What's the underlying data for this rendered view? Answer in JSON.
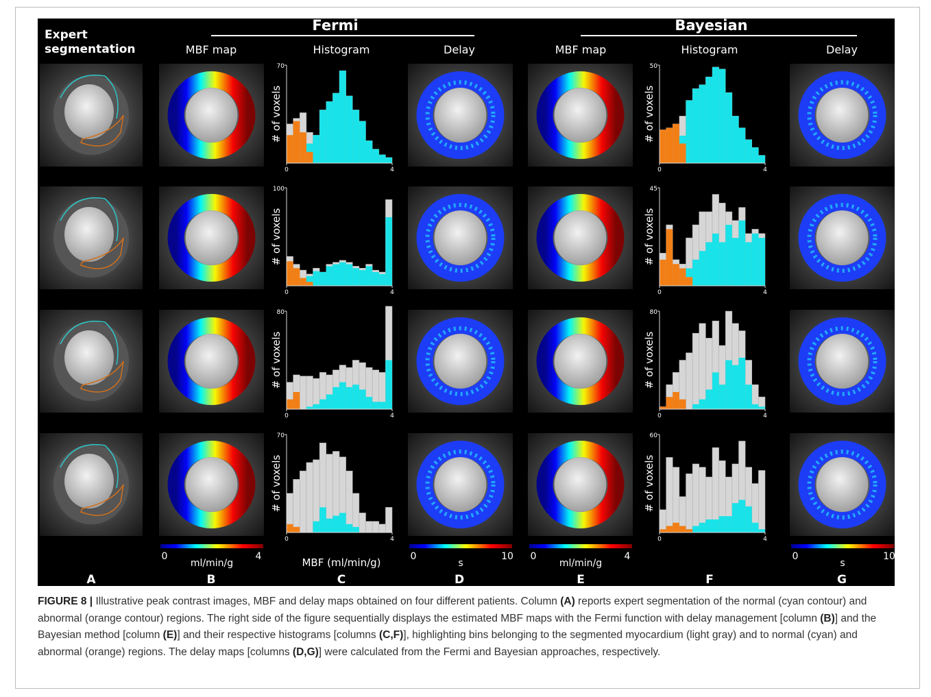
{
  "figure": {
    "groups": [
      {
        "title": "Fermi",
        "from": "B",
        "to": "D"
      },
      {
        "title": "Bayesian",
        "from": "E",
        "to": "G"
      }
    ],
    "colors": {
      "myocardium": "#d6d6d6",
      "normal": "#19e3e8",
      "abnormal": "#f27f16"
    },
    "columns": [
      {
        "letter": "A",
        "header_lines": [
          "Expert",
          "segmentation"
        ]
      },
      {
        "letter": "B",
        "header": "MBF map",
        "colorbar": {
          "min": 0,
          "max": 4,
          "unit": "ml/min/g"
        }
      },
      {
        "letter": "C",
        "header": "Histogram",
        "xlabel": "MBF (ml/min/g)",
        "panels": [
          {
            "ylabel": "# of voxels",
            "ylim": [
              0,
              70
            ],
            "yticks": [
              70
            ],
            "xlim": [
              0,
              4
            ],
            "xticks": [
              0,
              4
            ],
            "bins": [
              0,
              0.25,
              0.5,
              0.75,
              1,
              1.25,
              1.5,
              1.75,
              2,
              2.25,
              2.5,
              2.75,
              3,
              3.25,
              3.5,
              3.75,
              4
            ],
            "myocardium": [
              28,
              32,
              36,
              22,
              20,
              38,
              44,
              50,
              66,
              48,
              38,
              30,
              16,
              10,
              6,
              4
            ],
            "normal": [
              0,
              0,
              8,
              14,
              20,
              38,
              44,
              50,
              66,
              48,
              38,
              30,
              16,
              10,
              6,
              4
            ],
            "abnormal": [
              20,
              30,
              22,
              8,
              0,
              0,
              0,
              0,
              0,
              0,
              0,
              0,
              0,
              0,
              0,
              0
            ]
          },
          {
            "ylabel": "# of voxels",
            "ylim": [
              0,
              100
            ],
            "yticks": [
              100
            ],
            "xlim": [
              0,
              4
            ],
            "xticks": [
              0,
              4
            ],
            "bins": [
              0,
              0.25,
              0.5,
              0.75,
              1,
              1.25,
              1.5,
              1.75,
              2,
              2.25,
              2.5,
              2.75,
              3,
              3.25,
              3.5,
              3.75,
              4
            ],
            "myocardium": [
              30,
              22,
              16,
              12,
              18,
              14,
              22,
              24,
              26,
              24,
              20,
              18,
              22,
              16,
              14,
              88
            ],
            "normal": [
              0,
              5,
              8,
              10,
              15,
              14,
              20,
              22,
              24,
              22,
              18,
              16,
              20,
              14,
              12,
              70
            ],
            "abnormal": [
              25,
              18,
              8,
              4,
              0,
              0,
              0,
              0,
              0,
              0,
              0,
              0,
              0,
              0,
              0,
              0
            ]
          },
          {
            "ylabel": "# of voxels",
            "ylim": [
              0,
              80
            ],
            "yticks": [
              80
            ],
            "xlim": [
              0,
              4
            ],
            "xticks": [
              0,
              4
            ],
            "bins": [
              0,
              0.25,
              0.5,
              0.75,
              1,
              1.25,
              1.5,
              1.75,
              2,
              2.25,
              2.5,
              2.75,
              3,
              3.25,
              3.5,
              3.75,
              4
            ],
            "myocardium": [
              22,
              28,
              27,
              27,
              25,
              30,
              28,
              32,
              36,
              34,
              40,
              38,
              34,
              32,
              30,
              84
            ],
            "normal": [
              0,
              0,
              0,
              2,
              4,
              8,
              12,
              18,
              22,
              18,
              20,
              16,
              10,
              6,
              6,
              40
            ],
            "abnormal": [
              8,
              14,
              0,
              0,
              0,
              0,
              0,
              0,
              0,
              0,
              0,
              0,
              0,
              0,
              0,
              0
            ]
          },
          {
            "ylabel": "# of voxels",
            "ylim": [
              0,
              70
            ],
            "yticks": [
              70
            ],
            "xlim": [
              0,
              4
            ],
            "xticks": [
              0,
              4
            ],
            "bins": [
              0,
              0.25,
              0.5,
              0.75,
              1,
              1.25,
              1.5,
              1.75,
              2,
              2.25,
              2.5,
              2.75,
              3,
              3.25,
              3.5,
              3.75,
              4
            ],
            "myocardium": [
              28,
              38,
              44,
              50,
              52,
              64,
              56,
              58,
              54,
              44,
              28,
              14,
              8,
              8,
              6,
              18
            ],
            "normal": [
              0,
              0,
              0,
              0,
              8,
              18,
              10,
              12,
              14,
              6,
              4,
              0,
              0,
              0,
              0,
              0
            ],
            "abnormal": [
              6,
              4,
              0,
              0,
              0,
              0,
              0,
              0,
              0,
              0,
              0,
              0,
              0,
              0,
              0,
              0
            ]
          }
        ]
      },
      {
        "letter": "D",
        "header": "Delay",
        "colorbar": {
          "min": 0,
          "max": 10,
          "unit": "s"
        }
      },
      {
        "letter": "E",
        "header": "MBF map",
        "colorbar": {
          "min": 0,
          "max": 4,
          "unit": "ml/min/g"
        }
      },
      {
        "letter": "F",
        "header": "Histogram",
        "panels": [
          {
            "ylabel": "# of voxels",
            "ylim": [
              0,
              50
            ],
            "yticks": [
              50
            ],
            "xlim": [
              0,
              4
            ],
            "xticks": [
              0,
              4
            ],
            "bins": [
              0,
              0.25,
              0.5,
              0.75,
              1,
              1.25,
              1.5,
              1.75,
              2,
              2.25,
              2.5,
              2.75,
              3,
              3.25,
              3.5,
              3.75,
              4
            ],
            "myocardium": [
              17,
              18,
              20,
              24,
              32,
              38,
              40,
              44,
              49,
              48,
              36,
              24,
              18,
              12,
              8,
              4
            ],
            "normal": [
              0,
              0,
              0,
              14,
              32,
              38,
              40,
              44,
              49,
              48,
              36,
              24,
              18,
              12,
              8,
              4
            ],
            "abnormal": [
              17,
              18,
              20,
              10,
              0,
              0,
              0,
              0,
              0,
              0,
              0,
              0,
              0,
              0,
              0,
              0
            ]
          },
          {
            "ylabel": "# of voxels",
            "ylim": [
              0,
              45
            ],
            "yticks": [
              45
            ],
            "xlim": [
              0,
              4
            ],
            "xticks": [
              0,
              4
            ],
            "bins": [
              0,
              0.25,
              0.5,
              0.75,
              1,
              1.25,
              1.5,
              1.75,
              2,
              2.25,
              2.5,
              2.75,
              3,
              3.25,
              3.5,
              3.75,
              4
            ],
            "myocardium": [
              15,
              28,
              12,
              10,
              22,
              28,
              34,
              34,
              42,
              38,
              34,
              30,
              36,
              24,
              26,
              24
            ],
            "normal": [
              0,
              0,
              0,
              2,
              8,
              12,
              16,
              20,
              24,
              20,
              28,
              22,
              30,
              20,
              24,
              22
            ],
            "abnormal": [
              12,
              26,
              10,
              8,
              4,
              0,
              0,
              0,
              0,
              0,
              0,
              0,
              0,
              0,
              0,
              0
            ]
          },
          {
            "ylabel": "# of voxels",
            "ylim": [
              0,
              80
            ],
            "yticks": [
              80
            ],
            "xlim": [
              0,
              4
            ],
            "xticks": [
              0,
              4
            ],
            "bins": [
              0,
              0.25,
              0.5,
              0.75,
              1,
              1.25,
              1.5,
              1.75,
              2,
              2.25,
              2.5,
              2.75,
              3,
              3.25,
              3.5,
              3.75,
              4
            ],
            "myocardium": [
              2,
              20,
              30,
              40,
              46,
              62,
              70,
              58,
              72,
              52,
              80,
              70,
              64,
              40,
              20,
              10
            ],
            "normal": [
              0,
              0,
              0,
              0,
              0,
              4,
              8,
              16,
              30,
              20,
              40,
              36,
              42,
              20,
              4,
              2
            ],
            "abnormal": [
              2,
              10,
              14,
              8,
              0,
              0,
              0,
              0,
              0,
              0,
              0,
              0,
              0,
              0,
              0,
              0
            ]
          },
          {
            "ylabel": "# of voxels",
            "ylim": [
              0,
              60
            ],
            "yticks": [
              60
            ],
            "xlim": [
              0,
              4
            ],
            "xticks": [
              0,
              4
            ],
            "bins": [
              0,
              0.25,
              0.5,
              0.75,
              1,
              1.25,
              1.5,
              1.75,
              2,
              2.25,
              2.5,
              2.75,
              3,
              3.25,
              3.5,
              3.75,
              4
            ],
            "myocardium": [
              14,
              46,
              40,
              22,
              36,
              42,
              40,
              34,
              52,
              44,
              34,
              42,
              56,
              40,
              30,
              38
            ],
            "normal": [
              0,
              0,
              0,
              0,
              2,
              4,
              6,
              8,
              8,
              10,
              10,
              18,
              20,
              16,
              6,
              2
            ],
            "abnormal": [
              2,
              4,
              6,
              4,
              2,
              0,
              0,
              0,
              0,
              0,
              0,
              0,
              0,
              0,
              0,
              0
            ]
          }
        ]
      },
      {
        "letter": "G",
        "header": "Delay",
        "colorbar": {
          "min": 0,
          "max": 10,
          "unit": "s"
        }
      }
    ],
    "caption": [
      {
        "text": "FIGURE 8 |",
        "bold": true
      },
      {
        "text": " Illustrative peak contrast images, MBF and delay maps obtained on four different patients. Column ",
        "bold": false
      },
      {
        "text": "(A)",
        "bold": true
      },
      {
        "text": " reports expert segmentation of the normal (cyan contour) and abnormal (orange contour) regions. The right side of the figure sequentially displays the estimated MBF maps with the Fermi function with delay management [column ",
        "bold": false
      },
      {
        "text": "(B)",
        "bold": true
      },
      {
        "text": "] and the Bayesian method [column ",
        "bold": false
      },
      {
        "text": "(E)",
        "bold": true
      },
      {
        "text": "] and their respective histograms [columns ",
        "bold": false
      },
      {
        "text": "(C,F)",
        "bold": true
      },
      {
        "text": "], highlighting bins belonging to the segmented myocardium (light gray) and to normal (cyan) and abnormal (orange) regions. The delay maps [columns ",
        "bold": false
      },
      {
        "text": "(D,G)",
        "bold": true
      },
      {
        "text": "] were calculated from the Fermi and Bayesian approaches, respectively.",
        "bold": false
      }
    ]
  }
}
